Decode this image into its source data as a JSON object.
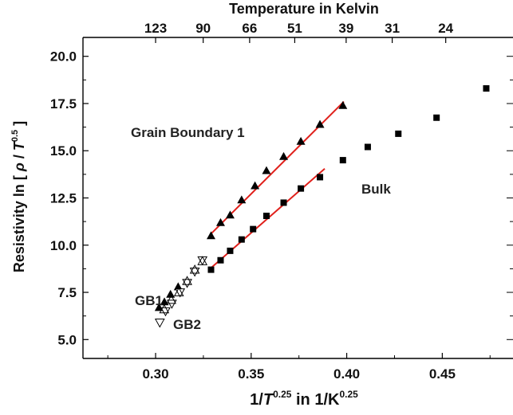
{
  "chart_data": {
    "type": "scatter",
    "title": "",
    "top_axis": {
      "label": "Temperature in Kelvin",
      "ticks": [
        {
          "label": "123",
          "x": 0.3
        },
        {
          "label": "90",
          "x": 0.3249
        },
        {
          "label": "66",
          "x": 0.3492
        },
        {
          "label": "51",
          "x": 0.3728
        },
        {
          "label": "39",
          "x": 0.3997
        },
        {
          "label": "31",
          "x": 0.4238
        },
        {
          "label": "24",
          "x": 0.4518
        }
      ]
    },
    "x_axis": {
      "label_main": "1/",
      "label_var": "T",
      "label_exp": "0.25",
      "label_mid": " in 1/K",
      "label_exp2": "0.25",
      "xlim": [
        0.262,
        0.487
      ],
      "ticks": [
        "0.30",
        "0.35",
        "0.40",
        "0.45"
      ]
    },
    "y_axis": {
      "label_prefix": "Resistivity ln [ ",
      "label_rho": "ρ",
      "label_slash": " / ",
      "label_T": "T",
      "label_exp": "0.5",
      "label_suffix": " ]",
      "ylim": [
        4.0,
        21.0
      ],
      "ticks": [
        "5.0",
        "7.5",
        "10.0",
        "12.5",
        "15.0",
        "17.5",
        "20.0"
      ]
    },
    "annotations": {
      "grain_boundary": "Grain Boundary 1",
      "bulk": "Bulk",
      "gb1": "GB1",
      "gb2": "GB2"
    },
    "series": [
      {
        "marker": "square",
        "x": [
          0.329,
          0.334,
          0.339,
          0.345,
          0.351,
          0.358,
          0.367,
          0.376,
          0.386,
          0.398,
          0.411,
          0.427,
          0.447,
          0.473
        ],
        "y": [
          8.7,
          9.2,
          9.7,
          10.3,
          10.85,
          11.55,
          12.25,
          13.0,
          13.6,
          14.5,
          15.2,
          15.9,
          16.75,
          18.3
        ]
      },
      {
        "marker": "triangle-up-filled",
        "x": [
          0.3018,
          0.3046,
          0.3078,
          0.3118,
          0.329,
          0.334,
          0.339,
          0.345,
          0.352,
          0.358,
          0.367,
          0.376,
          0.386,
          0.398
        ],
        "y": [
          6.7,
          7.0,
          7.4,
          7.8,
          10.5,
          11.2,
          11.6,
          12.4,
          13.15,
          13.95,
          14.7,
          15.5,
          16.4,
          17.4
        ]
      },
      {
        "marker": "triangle-down-open",
        "x": [
          0.3022,
          0.3052,
          0.3085,
          0.3128,
          0.3165,
          0.3205,
          0.3245
        ],
        "y": [
          5.9,
          6.5,
          6.9,
          7.5,
          8.0,
          8.6,
          9.2
        ]
      },
      {
        "marker": "triangle-up-open",
        "x": [
          0.3045,
          0.3082,
          0.3122,
          0.3165,
          0.3205,
          0.3245
        ],
        "y": [
          6.6,
          7.1,
          7.5,
          8.1,
          8.7,
          9.15
        ]
      }
    ],
    "fit_lines": [
      {
        "color": "#e0201b",
        "x": [
          0.3285,
          0.3985
        ],
        "y": [
          10.55,
          17.6
        ]
      },
      {
        "color": "#e0201b",
        "x": [
          0.3285,
          0.3885
        ],
        "y": [
          8.75,
          14.05
        ]
      }
    ],
    "grid": false,
    "legend": "none"
  }
}
